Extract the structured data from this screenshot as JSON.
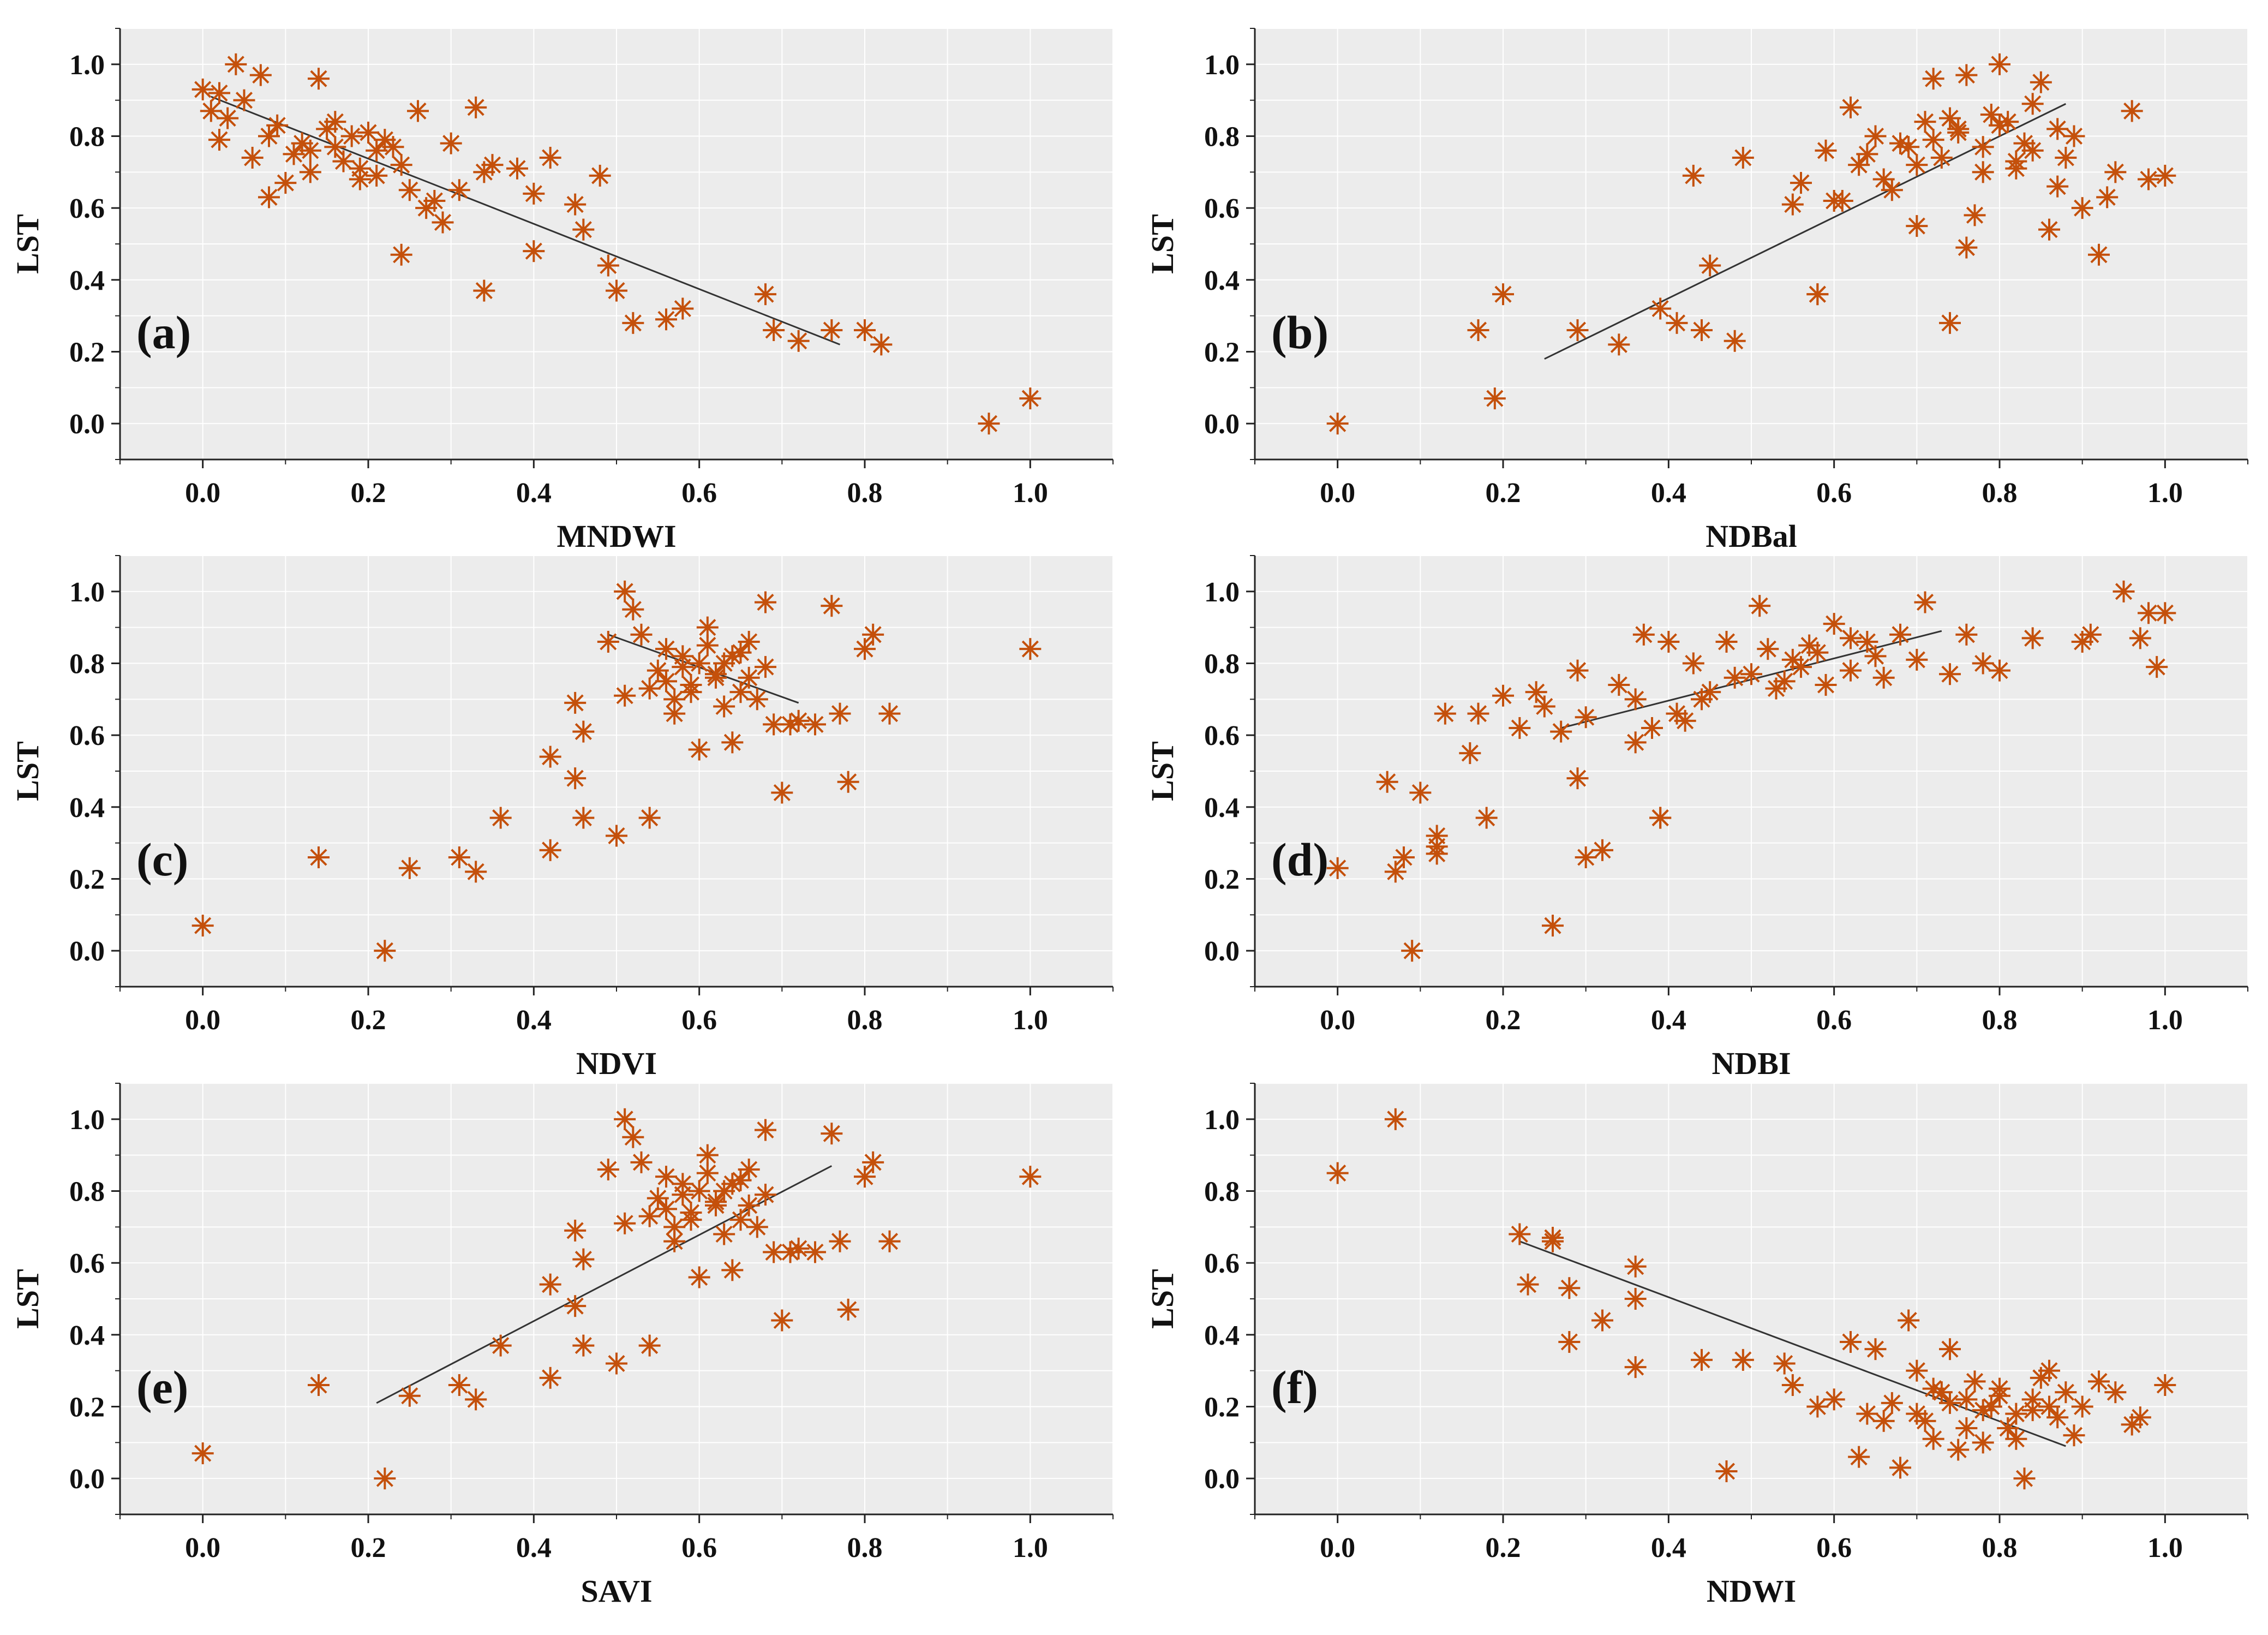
{
  "figure": {
    "background": "#ffffff",
    "plot_background": "#ececec",
    "marker_color": "#c4500b",
    "fit_color": "#333333"
  },
  "chart_data": [
    {
      "type": "scatter",
      "panel_label": "(a)",
      "xlabel": "MNDWI",
      "ylabel": "LST",
      "xlim": [
        -0.1,
        1.1
      ],
      "ylim": [
        -0.1,
        1.1
      ],
      "xticks": [
        "0.0",
        "0.2",
        "0.4",
        "0.6",
        "0.8",
        "1.0"
      ],
      "yticks": [
        "0.0",
        "0.2",
        "0.4",
        "0.6",
        "0.8",
        "1.0"
      ],
      "fit": {
        "x": [
          0.01,
          0.77
        ],
        "y": [
          0.91,
          0.22
        ]
      },
      "points": {
        "x": [
          0.04,
          0.07,
          0.0,
          0.02,
          0.05,
          0.01,
          0.03,
          0.09,
          0.14,
          0.08,
          0.12,
          0.15,
          0.18,
          0.21,
          0.11,
          0.17,
          0.22,
          0.24,
          0.26,
          0.13,
          0.19,
          0.1,
          0.06,
          0.16,
          0.2,
          0.23,
          0.25,
          0.27,
          0.29,
          0.3,
          0.31,
          0.33,
          0.28,
          0.34,
          0.35,
          0.38,
          0.4,
          0.42,
          0.45,
          0.46,
          0.48,
          0.49,
          0.5,
          0.52,
          0.56,
          0.58,
          0.68,
          0.69,
          0.72,
          0.76,
          0.8,
          0.82,
          0.95,
          1.0,
          0.24,
          0.34,
          0.4,
          0.02,
          0.08,
          0.13,
          0.16,
          0.19,
          0.21
        ],
        "y": [
          1.0,
          0.97,
          0.93,
          0.92,
          0.9,
          0.87,
          0.85,
          0.83,
          0.96,
          0.8,
          0.78,
          0.82,
          0.8,
          0.76,
          0.75,
          0.73,
          0.79,
          0.72,
          0.87,
          0.7,
          0.68,
          0.67,
          0.74,
          0.84,
          0.81,
          0.77,
          0.65,
          0.6,
          0.56,
          0.78,
          0.65,
          0.88,
          0.62,
          0.7,
          0.72,
          0.71,
          0.64,
          0.74,
          0.61,
          0.54,
          0.69,
          0.44,
          0.37,
          0.28,
          0.29,
          0.32,
          0.36,
          0.26,
          0.23,
          0.26,
          0.26,
          0.22,
          0.0,
          0.07,
          0.47,
          0.37,
          0.48,
          0.79,
          0.63,
          0.76,
          0.77,
          0.71,
          0.69
        ]
      }
    },
    {
      "type": "scatter",
      "panel_label": "(b)",
      "xlabel": "NDBal",
      "ylabel": "LST",
      "xlim": [
        -0.1,
        1.1
      ],
      "ylim": [
        -0.1,
        1.1
      ],
      "xticks": [
        "0.0",
        "0.2",
        "0.4",
        "0.6",
        "0.8",
        "1.0"
      ],
      "yticks": [
        "0.0",
        "0.2",
        "0.4",
        "0.6",
        "0.8",
        "1.0"
      ],
      "fit": {
        "x": [
          0.25,
          0.88
        ],
        "y": [
          0.18,
          0.89
        ]
      },
      "points": {
        "x": [
          0.0,
          0.17,
          0.19,
          0.2,
          0.29,
          0.34,
          0.39,
          0.41,
          0.43,
          0.44,
          0.45,
          0.49,
          0.48,
          0.56,
          0.58,
          0.58,
          0.59,
          0.6,
          0.62,
          0.63,
          0.65,
          0.67,
          0.68,
          0.7,
          0.71,
          0.72,
          0.73,
          0.74,
          0.75,
          0.76,
          0.77,
          0.78,
          0.79,
          0.8,
          0.81,
          0.82,
          0.83,
          0.84,
          0.85,
          0.86,
          0.87,
          0.88,
          0.89,
          0.9,
          0.92,
          0.93,
          0.94,
          0.96,
          0.98,
          1.0,
          0.74,
          0.76,
          0.78,
          0.7,
          0.64,
          0.66,
          0.72,
          0.84,
          0.8,
          0.55,
          0.61,
          0.69,
          0.75,
          0.82,
          0.87
        ],
        "y": [
          0.0,
          0.26,
          0.07,
          0.36,
          0.26,
          0.22,
          0.32,
          0.28,
          0.69,
          0.26,
          0.44,
          0.74,
          0.23,
          0.67,
          0.36,
          0.36,
          0.76,
          0.62,
          0.88,
          0.72,
          0.8,
          0.65,
          0.78,
          0.55,
          0.84,
          0.96,
          0.74,
          0.28,
          0.82,
          0.97,
          0.58,
          0.77,
          0.86,
          1.0,
          0.84,
          0.71,
          0.78,
          0.89,
          0.95,
          0.54,
          0.82,
          0.74,
          0.8,
          0.6,
          0.47,
          0.63,
          0.7,
          0.87,
          0.68,
          0.69,
          0.85,
          0.49,
          0.7,
          0.72,
          0.75,
          0.68,
          0.79,
          0.76,
          0.83,
          0.61,
          0.62,
          0.77,
          0.81,
          0.73,
          0.66
        ]
      }
    },
    {
      "type": "scatter",
      "panel_label": "(c)",
      "xlabel": "NDVI",
      "ylabel": "LST",
      "xlim": [
        -0.1,
        1.1
      ],
      "ylim": [
        -0.1,
        1.1
      ],
      "xticks": [
        "0.0",
        "0.2",
        "0.4",
        "0.6",
        "0.8",
        "1.0"
      ],
      "yticks": [
        "0.0",
        "0.2",
        "0.4",
        "0.6",
        "0.8",
        "1.0"
      ],
      "fit": {
        "x": [
          0.49,
          0.72
        ],
        "y": [
          0.88,
          0.69
        ]
      },
      "points": {
        "x": [
          0.0,
          0.14,
          0.22,
          0.25,
          0.31,
          0.33,
          0.36,
          0.42,
          0.42,
          0.45,
          0.45,
          0.46,
          0.46,
          0.5,
          0.51,
          0.54,
          0.49,
          0.51,
          0.52,
          0.53,
          0.55,
          0.56,
          0.57,
          0.58,
          0.59,
          0.6,
          0.61,
          0.62,
          0.63,
          0.64,
          0.65,
          0.66,
          0.67,
          0.68,
          0.69,
          0.7,
          0.71,
          0.72,
          0.74,
          0.76,
          0.77,
          0.78,
          0.8,
          0.81,
          0.83,
          1.0,
          0.6,
          0.62,
          0.58,
          0.64,
          0.56,
          0.61,
          0.59,
          0.63,
          0.66,
          0.57,
          0.65,
          0.54,
          0.68
        ],
        "y": [
          0.07,
          0.26,
          0.0,
          0.23,
          0.26,
          0.22,
          0.37,
          0.28,
          0.54,
          0.69,
          0.48,
          0.61,
          0.37,
          0.32,
          1.0,
          0.37,
          0.86,
          0.71,
          0.95,
          0.88,
          0.78,
          0.84,
          0.66,
          0.82,
          0.74,
          0.56,
          0.9,
          0.76,
          0.8,
          0.58,
          0.72,
          0.86,
          0.7,
          0.97,
          0.63,
          0.44,
          0.63,
          0.64,
          0.63,
          0.96,
          0.66,
          0.47,
          0.84,
          0.88,
          0.66,
          0.84,
          0.8,
          0.77,
          0.79,
          0.82,
          0.75,
          0.85,
          0.72,
          0.68,
          0.76,
          0.7,
          0.83,
          0.73,
          0.79
        ]
      }
    },
    {
      "type": "scatter",
      "panel_label": "(d)",
      "xlabel": "NDBI",
      "ylabel": "LST",
      "xlim": [
        -0.1,
        1.1
      ],
      "ylim": [
        -0.1,
        1.1
      ],
      "xticks": [
        "0.0",
        "0.2",
        "0.4",
        "0.6",
        "0.8",
        "1.0"
      ],
      "yticks": [
        "0.0",
        "0.2",
        "0.4",
        "0.6",
        "0.8",
        "1.0"
      ],
      "fit": {
        "x": [
          0.27,
          0.73
        ],
        "y": [
          0.62,
          0.89
        ]
      },
      "points": {
        "x": [
          0.0,
          0.06,
          0.07,
          0.08,
          0.09,
          0.1,
          0.12,
          0.12,
          0.12,
          0.13,
          0.16,
          0.17,
          0.18,
          0.2,
          0.22,
          0.24,
          0.25,
          0.26,
          0.27,
          0.29,
          0.3,
          0.29,
          0.3,
          0.32,
          0.34,
          0.36,
          0.37,
          0.38,
          0.39,
          0.39,
          0.4,
          0.41,
          0.43,
          0.45,
          0.47,
          0.5,
          0.51,
          0.53,
          0.55,
          0.57,
          0.59,
          0.6,
          0.62,
          0.64,
          0.66,
          0.68,
          0.7,
          0.71,
          0.74,
          0.76,
          0.78,
          0.8,
          0.84,
          0.9,
          0.91,
          0.95,
          0.97,
          0.98,
          0.99,
          1.0,
          0.48,
          0.52,
          0.56,
          0.44,
          0.58,
          0.36,
          0.62,
          0.42,
          0.65,
          0.54
        ],
        "y": [
          0.23,
          0.47,
          0.22,
          0.26,
          0.0,
          0.44,
          0.32,
          0.27,
          0.29,
          0.66,
          0.55,
          0.66,
          0.37,
          0.71,
          0.62,
          0.72,
          0.68,
          0.07,
          0.61,
          0.48,
          0.26,
          0.78,
          0.65,
          0.28,
          0.74,
          0.58,
          0.88,
          0.62,
          0.37,
          0.37,
          0.86,
          0.66,
          0.8,
          0.72,
          0.86,
          0.77,
          0.96,
          0.73,
          0.81,
          0.85,
          0.74,
          0.91,
          0.78,
          0.86,
          0.76,
          0.88,
          0.81,
          0.97,
          0.77,
          0.88,
          0.8,
          0.78,
          0.87,
          0.86,
          0.88,
          1.0,
          0.87,
          0.94,
          0.79,
          0.94,
          0.76,
          0.84,
          0.79,
          0.7,
          0.83,
          0.7,
          0.87,
          0.64,
          0.82,
          0.75
        ]
      }
    },
    {
      "type": "scatter",
      "panel_label": "(e)",
      "xlabel": "SAVI",
      "ylabel": "LST",
      "xlim": [
        -0.1,
        1.1
      ],
      "ylim": [
        -0.1,
        1.1
      ],
      "xticks": [
        "0.0",
        "0.2",
        "0.4",
        "0.6",
        "0.8",
        "1.0"
      ],
      "yticks": [
        "0.0",
        "0.2",
        "0.4",
        "0.6",
        "0.8",
        "1.0"
      ],
      "fit": {
        "x": [
          0.21,
          0.76
        ],
        "y": [
          0.21,
          0.87
        ]
      },
      "points": {
        "x": [
          0.0,
          0.14,
          0.22,
          0.25,
          0.31,
          0.33,
          0.36,
          0.42,
          0.42,
          0.45,
          0.45,
          0.46,
          0.46,
          0.5,
          0.51,
          0.54,
          0.49,
          0.51,
          0.52,
          0.53,
          0.55,
          0.56,
          0.57,
          0.58,
          0.59,
          0.6,
          0.61,
          0.62,
          0.63,
          0.64,
          0.65,
          0.66,
          0.67,
          0.68,
          0.69,
          0.7,
          0.71,
          0.72,
          0.74,
          0.76,
          0.77,
          0.78,
          0.8,
          0.81,
          0.83,
          1.0,
          0.6,
          0.62,
          0.58,
          0.64,
          0.56,
          0.61,
          0.59,
          0.63,
          0.66,
          0.57,
          0.65,
          0.54,
          0.68
        ],
        "y": [
          0.07,
          0.26,
          0.0,
          0.23,
          0.26,
          0.22,
          0.37,
          0.28,
          0.54,
          0.69,
          0.48,
          0.61,
          0.37,
          0.32,
          1.0,
          0.37,
          0.86,
          0.71,
          0.95,
          0.88,
          0.78,
          0.84,
          0.66,
          0.82,
          0.74,
          0.56,
          0.9,
          0.76,
          0.8,
          0.58,
          0.72,
          0.86,
          0.7,
          0.97,
          0.63,
          0.44,
          0.63,
          0.64,
          0.63,
          0.96,
          0.66,
          0.47,
          0.84,
          0.88,
          0.66,
          0.84,
          0.8,
          0.77,
          0.79,
          0.82,
          0.75,
          0.85,
          0.72,
          0.68,
          0.76,
          0.7,
          0.83,
          0.73,
          0.79
        ]
      }
    },
    {
      "type": "scatter",
      "panel_label": "(f)",
      "xlabel": "NDWI",
      "ylabel": "LST",
      "xlim": [
        -0.1,
        1.1
      ],
      "ylim": [
        -0.1,
        1.1
      ],
      "xticks": [
        "0.0",
        "0.2",
        "0.4",
        "0.6",
        "0.8",
        "1.0"
      ],
      "yticks": [
        "0.0",
        "0.2",
        "0.4",
        "0.6",
        "0.8",
        "1.0"
      ],
      "fit": {
        "x": [
          0.22,
          0.88
        ],
        "y": [
          0.66,
          0.09
        ]
      },
      "points": {
        "x": [
          0.0,
          0.07,
          0.22,
          0.23,
          0.26,
          0.26,
          0.28,
          0.28,
          0.32,
          0.36,
          0.36,
          0.36,
          0.44,
          0.47,
          0.49,
          0.54,
          0.55,
          0.58,
          0.6,
          0.62,
          0.64,
          0.65,
          0.63,
          0.67,
          0.69,
          0.7,
          0.71,
          0.72,
          0.73,
          0.74,
          0.75,
          0.76,
          0.77,
          0.78,
          0.79,
          0.8,
          0.81,
          0.82,
          0.83,
          0.84,
          0.85,
          0.86,
          0.87,
          0.88,
          0.89,
          0.9,
          0.92,
          0.94,
          0.96,
          0.97,
          1.0,
          0.68,
          0.7,
          0.74,
          0.76,
          0.78,
          0.8,
          0.82,
          0.86,
          0.66,
          0.72,
          0.84
        ],
        "y": [
          0.85,
          1.0,
          0.68,
          0.54,
          0.66,
          0.67,
          0.53,
          0.38,
          0.44,
          0.59,
          0.5,
          0.31,
          0.33,
          0.02,
          0.33,
          0.32,
          0.26,
          0.2,
          0.22,
          0.38,
          0.18,
          0.36,
          0.06,
          0.21,
          0.44,
          0.3,
          0.16,
          0.11,
          0.24,
          0.36,
          0.08,
          0.22,
          0.27,
          0.1,
          0.2,
          0.25,
          0.14,
          0.18,
          0.0,
          0.22,
          0.28,
          0.3,
          0.17,
          0.24,
          0.12,
          0.2,
          0.27,
          0.24,
          0.15,
          0.17,
          0.26,
          0.03,
          0.18,
          0.21,
          0.14,
          0.19,
          0.23,
          0.11,
          0.2,
          0.16,
          0.25,
          0.19
        ]
      }
    }
  ]
}
